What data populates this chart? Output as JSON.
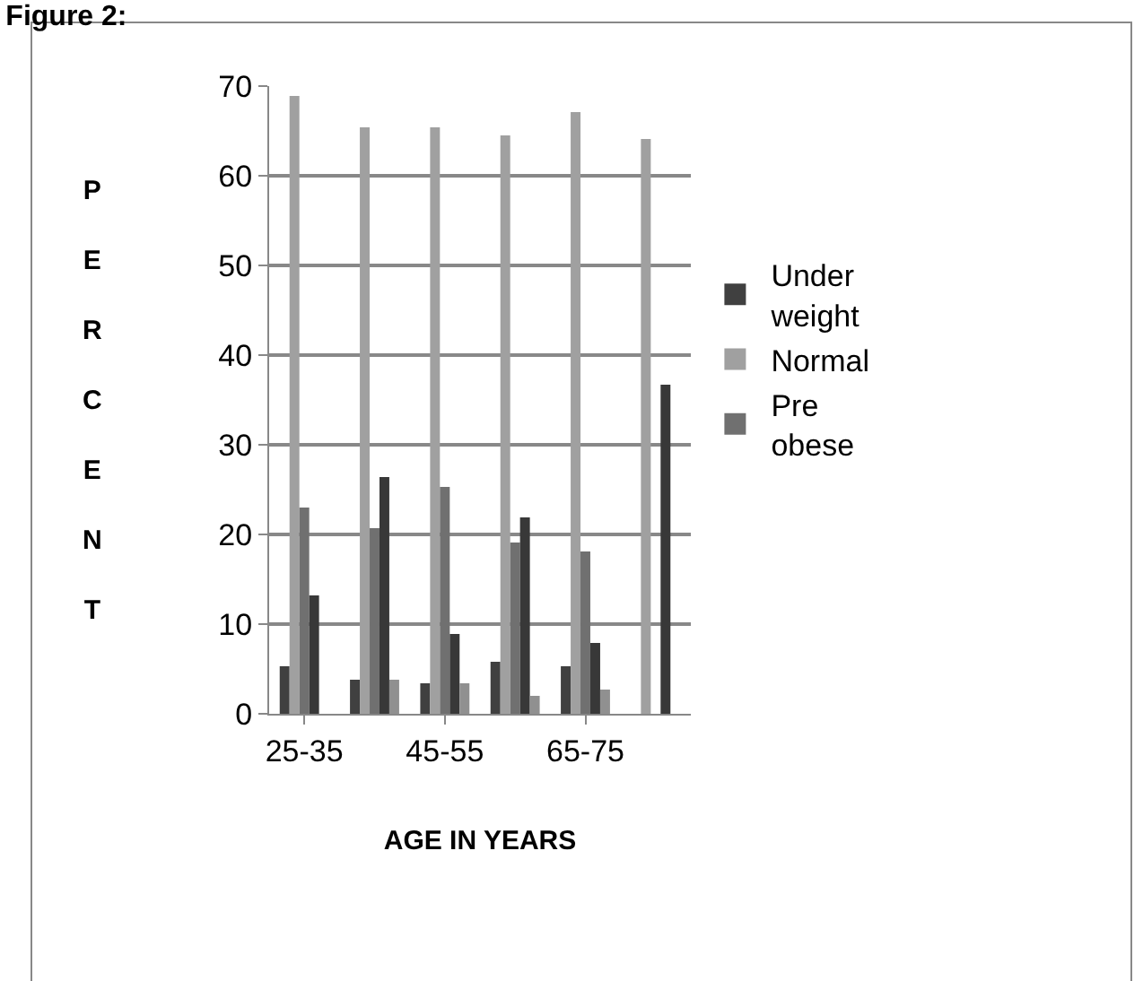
{
  "chart_data": {
    "type": "bar",
    "title": "Figure 2:",
    "xlabel": "AGE IN YEARS",
    "ylabel": "PERCENT",
    "categories": [
      "25-35",
      null,
      "45-55",
      null,
      "65-75",
      null
    ],
    "series": [
      {
        "name": "Under weight",
        "color": "#404040",
        "values": [
          5.3,
          3.8,
          3.4,
          5.8,
          5.3,
          0
        ]
      },
      {
        "name": "Normal",
        "color": "#a0a0a0",
        "values": [
          68.9,
          65.4,
          65.4,
          64.5,
          67.1,
          64.1
        ]
      },
      {
        "name": "Pre obese",
        "color": "#707070",
        "values": [
          23.0,
          20.7,
          25.3,
          19.1,
          18.1,
          0
        ]
      },
      {
        "color": "#383838",
        "values": [
          13.2,
          26.4,
          8.9,
          21.9,
          7.9,
          36.7
        ]
      },
      {
        "color": "#909090",
        "values": [
          0,
          3.8,
          3.4,
          2.0,
          2.7,
          0
        ]
      }
    ],
    "ylim": [
      0,
      70
    ],
    "yticks": [
      0,
      10,
      20,
      30,
      40,
      50,
      60,
      70
    ],
    "grid": "y",
    "legend": "right"
  }
}
